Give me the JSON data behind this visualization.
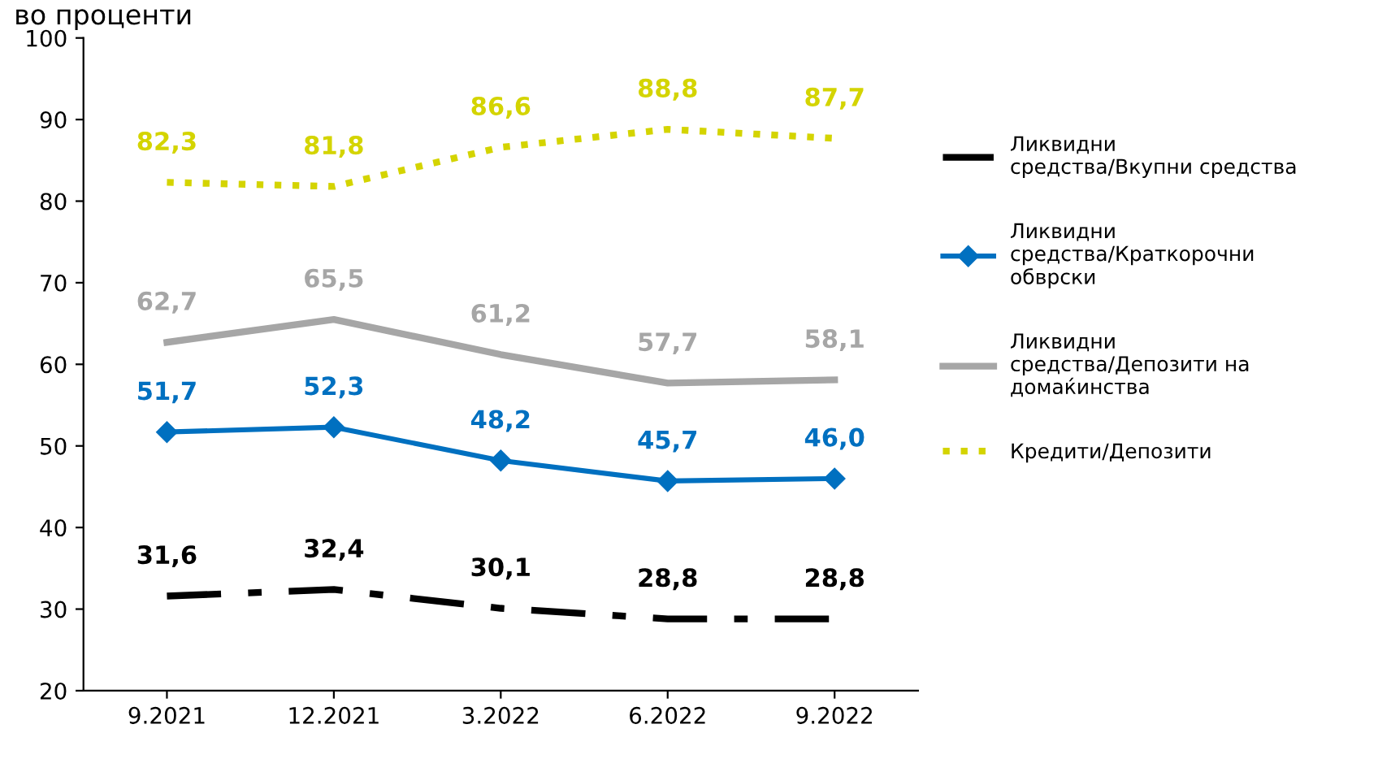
{
  "chart_data": {
    "type": "line",
    "title": "во проценти",
    "categories": [
      "9.2021",
      "12.2021",
      "3.2022",
      "6.2022",
      "9.2022"
    ],
    "series": [
      {
        "name": "Ликвидни средства/Вкупни средства",
        "color": "#000000",
        "line_style": "dashdot",
        "values": [
          31.6,
          32.4,
          30.1,
          28.8,
          28.8
        ],
        "value_labels": [
          "31,6",
          "32,4",
          "30,1",
          "28,8",
          "28,8"
        ]
      },
      {
        "name": "Ликвидни средства/Краткорочни обврски",
        "color": "#0070c0",
        "marker": "diamond",
        "values": [
          51.7,
          52.3,
          48.2,
          45.7,
          46.0
        ],
        "value_labels": [
          "51,7",
          "52,3",
          "48,2",
          "45,7",
          "46,0"
        ]
      },
      {
        "name": "Ликвидни средства/Депозити на домаќинства",
        "color": "#a6a6a6",
        "values": [
          62.7,
          65.5,
          61.2,
          57.7,
          58.1
        ],
        "value_labels": [
          "62,7",
          "65,5",
          "61,2",
          "57,7",
          "58,1"
        ]
      },
      {
        "name": "Кредити/Депозити",
        "color": "#d4d400",
        "line_style": "dotted",
        "values": [
          82.3,
          81.8,
          86.6,
          88.8,
          87.7
        ],
        "value_labels": [
          "82,3",
          "81,8",
          "86,6",
          "88,8",
          "87,7"
        ]
      }
    ],
    "ylim": [
      20,
      100
    ],
    "yticks": [
      20,
      30,
      40,
      50,
      60,
      70,
      80,
      90,
      100
    ],
    "grid": false,
    "legend": "right"
  }
}
